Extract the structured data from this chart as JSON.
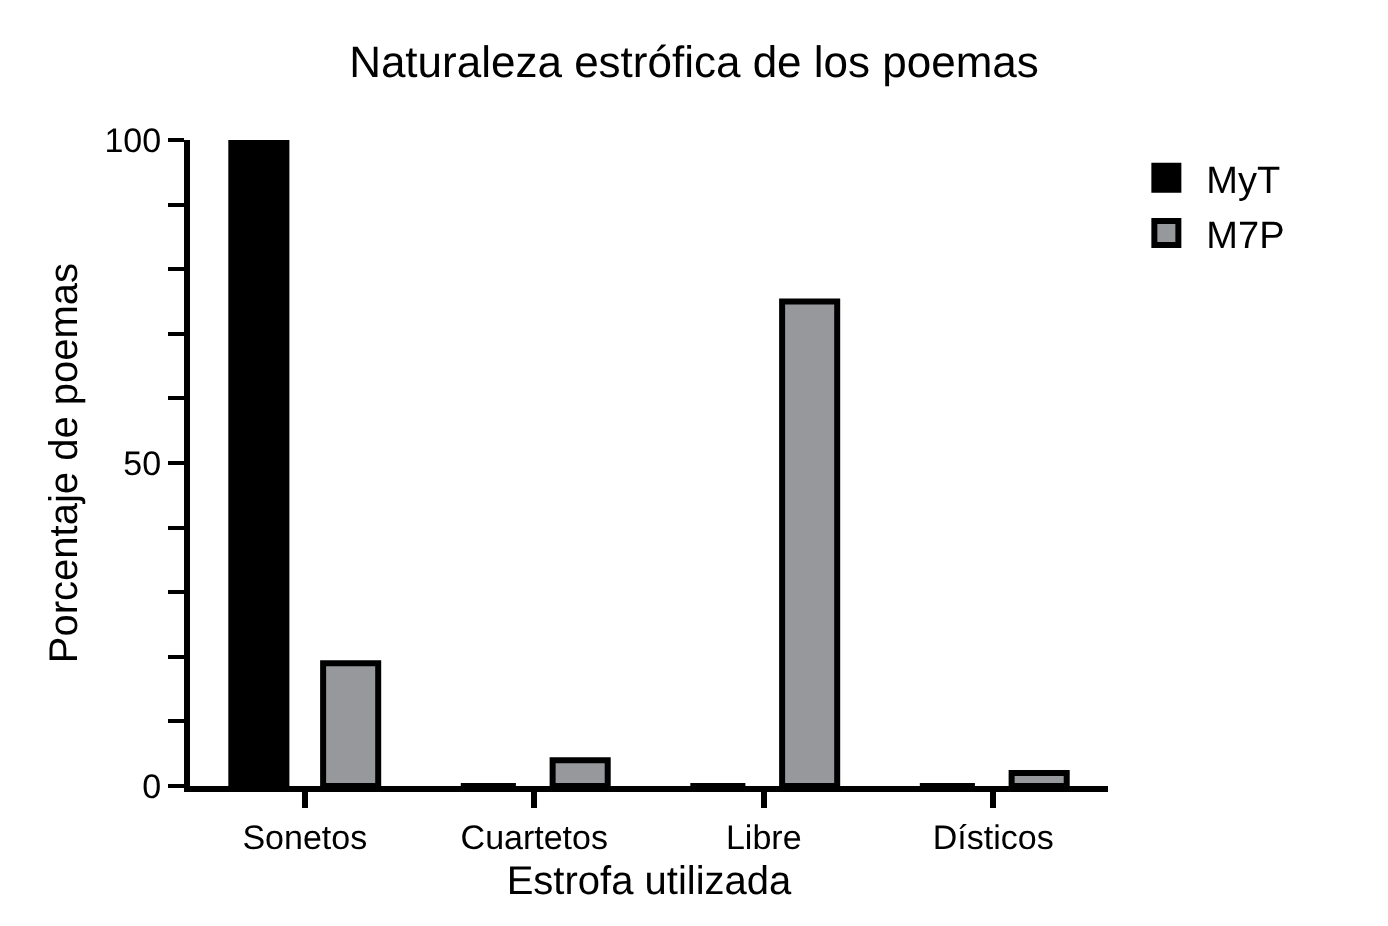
{
  "chart_data": {
    "type": "bar",
    "title": "Naturaleza estrófica de los poemas",
    "xlabel": "Estrofa utilizada",
    "ylabel": "Porcentaje de poemas",
    "categories": [
      "Sonetos",
      "Cuartetos",
      "Libre",
      "Dísticos"
    ],
    "series": [
      {
        "name": "MyT",
        "color": "#000000",
        "values": [
          100,
          0,
          0,
          0
        ]
      },
      {
        "name": "M7P",
        "color": "#96989c",
        "values": [
          19,
          4,
          75,
          2
        ]
      }
    ],
    "ylim": [
      0,
      100
    ],
    "yticks": [
      0,
      {
        "value": 10,
        "label": null
      },
      {
        "value": 20,
        "label": null
      },
      {
        "value": 30,
        "label": null
      },
      {
        "value": 40,
        "label": null
      },
      50,
      {
        "value": 60,
        "label": null
      },
      {
        "value": 70,
        "label": null
      },
      {
        "value": 80,
        "label": null
      },
      {
        "value": 90,
        "label": null
      },
      100
    ],
    "grid": false,
    "legend": "top right"
  }
}
